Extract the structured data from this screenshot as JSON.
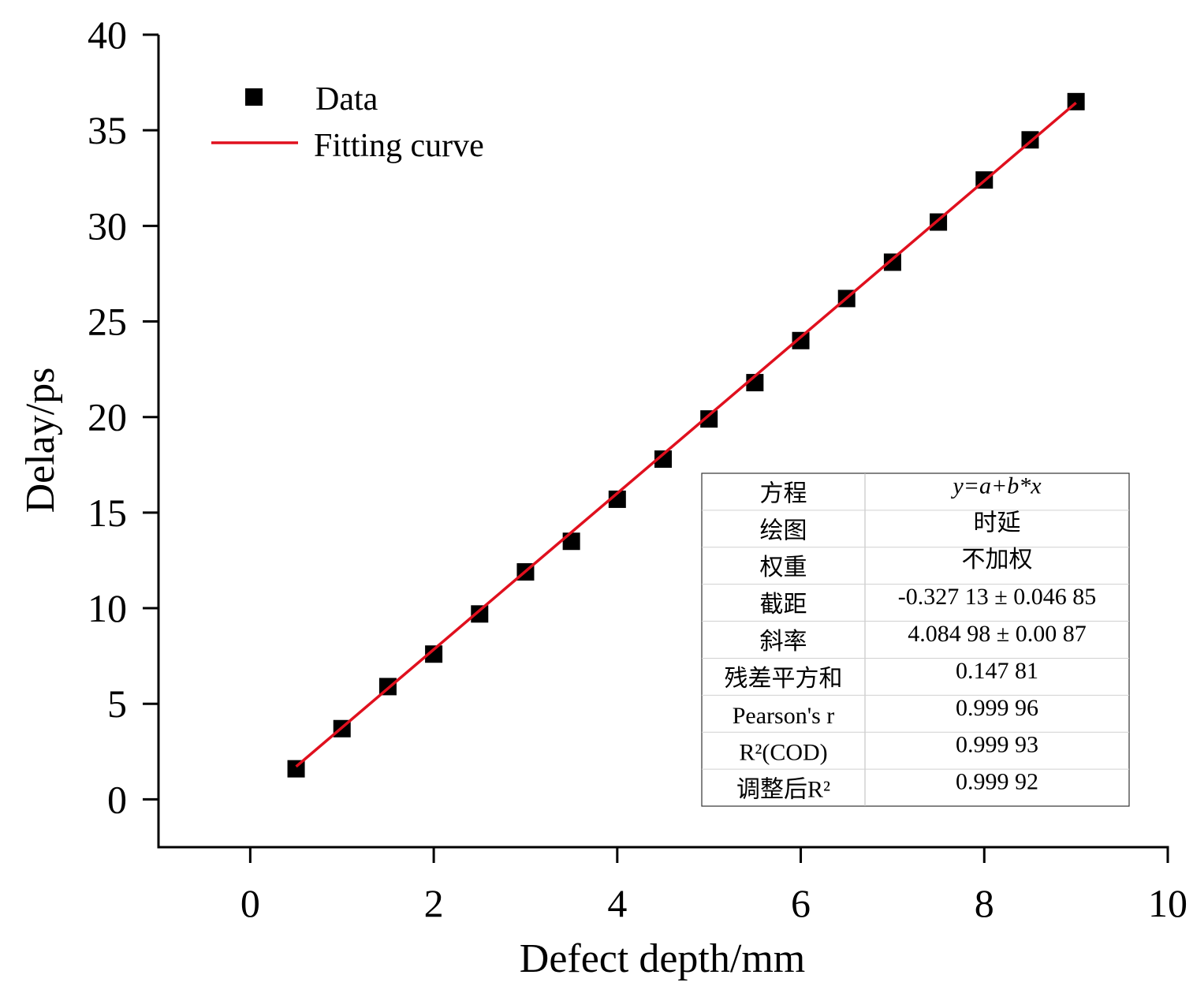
{
  "chart_data": {
    "type": "scatter",
    "xlabel": "Defect depth/mm",
    "ylabel": "Delay/ps",
    "xlim": [
      -1,
      10
    ],
    "ylim": [
      -2.5,
      40
    ],
    "xticks": [
      0,
      2,
      4,
      6,
      8,
      10
    ],
    "yticks": [
      0,
      5,
      10,
      15,
      20,
      25,
      30,
      35,
      40
    ],
    "legend_position": "top-left",
    "series": [
      {
        "name": "Data",
        "kind": "scatter",
        "color": "#000000",
        "x": [
          0.5,
          1.0,
          1.5,
          2.0,
          2.5,
          3.0,
          3.5,
          4.0,
          4.5,
          5.0,
          5.5,
          6.0,
          6.5,
          7.0,
          7.5,
          8.0,
          8.5,
          9.0
        ],
        "y": [
          1.6,
          3.7,
          5.9,
          7.6,
          9.7,
          11.9,
          13.5,
          15.7,
          17.8,
          19.9,
          21.8,
          24.0,
          26.2,
          28.1,
          30.2,
          32.4,
          34.5,
          36.5
        ]
      },
      {
        "name": "Fitting curve",
        "kind": "line",
        "color": "#e0101e",
        "intercept": -0.32713,
        "slope": 4.08498,
        "x_range": [
          0.5,
          9.0
        ]
      }
    ],
    "fit_table": [
      {
        "label": "方程",
        "value": "y=a+b*x"
      },
      {
        "label": "绘图",
        "value": "时延"
      },
      {
        "label": "权重",
        "value": "不加权"
      },
      {
        "label": "截距",
        "value": "-0.327 13 ± 0.046 85"
      },
      {
        "label": "斜率",
        "value": "4.084 98 ± 0.00 87"
      },
      {
        "label": "残差平方和",
        "value": "0.147 81"
      },
      {
        "label": "Pearson's r",
        "value": "0.999 96"
      },
      {
        "label": "R²(COD)",
        "value": "0.999 93"
      },
      {
        "label": "调整后R²",
        "value": "0.999 92"
      }
    ]
  }
}
